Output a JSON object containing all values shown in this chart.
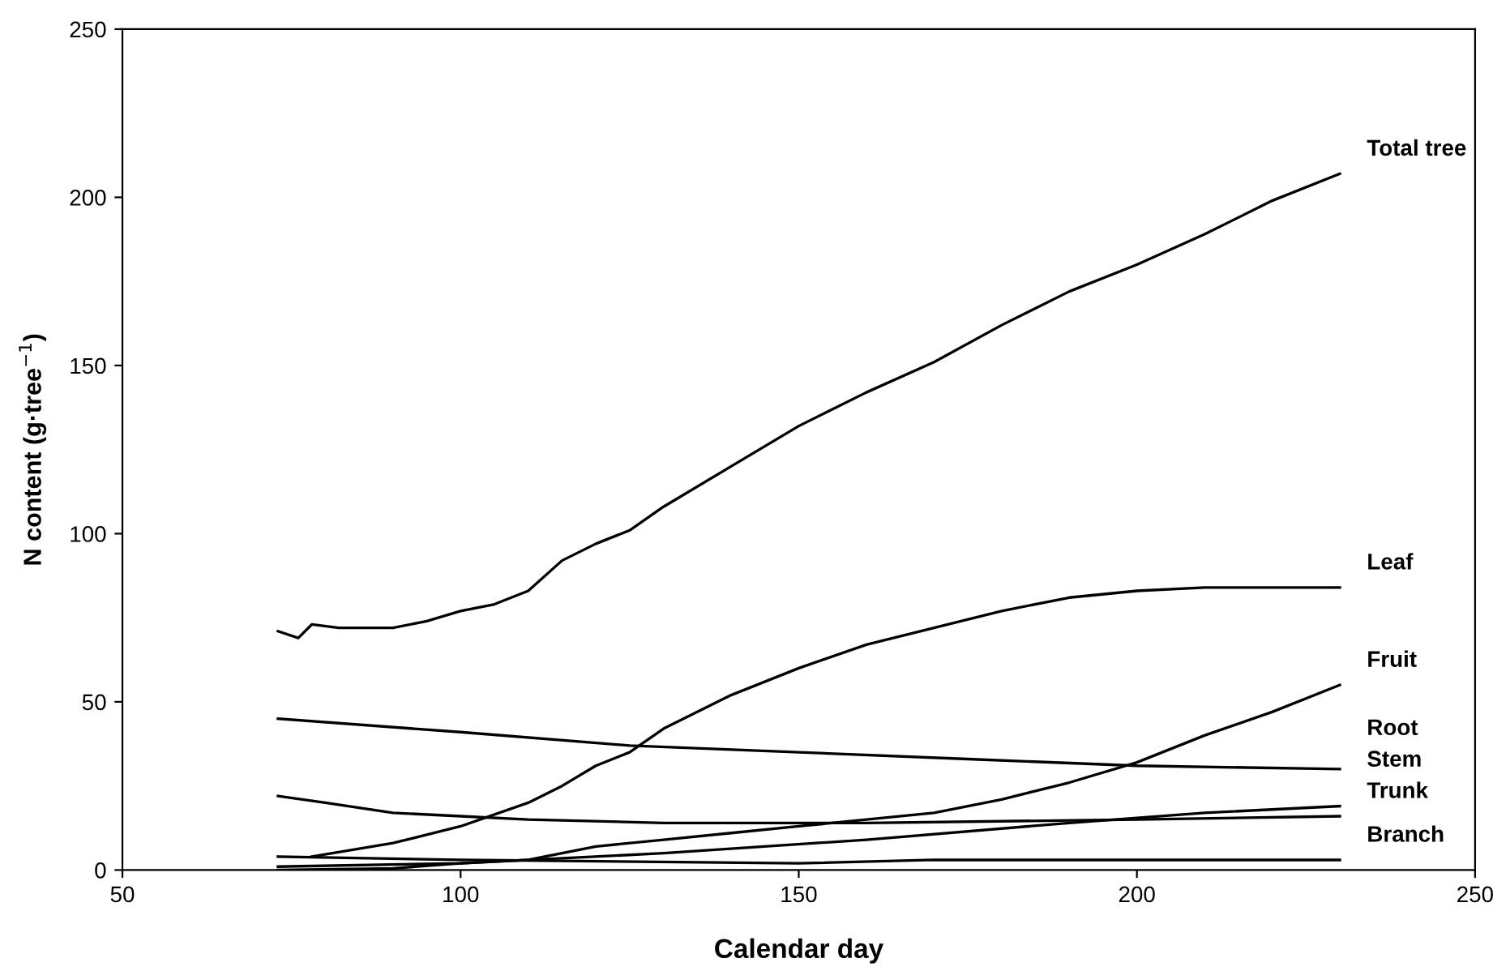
{
  "chart_data": {
    "type": "line",
    "xlabel": "Calendar day",
    "ylabel": "N content (g·tree$^{−1}$)",
    "xlim": [
      50,
      250
    ],
    "ylim": [
      0,
      250
    ],
    "xticks": [
      50,
      100,
      150,
      200,
      250
    ],
    "yticks": [
      0,
      50,
      100,
      150,
      200,
      250
    ],
    "grid": false,
    "legend": false,
    "marker": "none",
    "line_style": "solid",
    "series": [
      {
        "name": "Total tree",
        "color": "#000000",
        "x": [
          73,
          76,
          78,
          82,
          90,
          95,
          100,
          105,
          110,
          115,
          120,
          125,
          130,
          140,
          150,
          160,
          170,
          180,
          190,
          200,
          210,
          220,
          230
        ],
        "values": [
          71,
          69,
          73,
          72,
          72,
          74,
          77,
          79,
          83,
          92,
          97,
          101,
          108,
          120,
          132,
          142,
          151,
          162,
          172,
          180,
          189,
          199,
          207
        ]
      },
      {
        "name": "Leaf",
        "color": "#000000",
        "x": [
          78,
          90,
          100,
          110,
          115,
          120,
          125,
          130,
          140,
          150,
          160,
          170,
          180,
          190,
          200,
          210,
          230
        ],
        "values": [
          4,
          8,
          13,
          20,
          25,
          31,
          35,
          42,
          52,
          60,
          67,
          72,
          77,
          81,
          83,
          84,
          84
        ]
      },
      {
        "name": "Fruit",
        "color": "#000000",
        "x": [
          73,
          90,
          100,
          110,
          120,
          130,
          140,
          150,
          160,
          170,
          180,
          190,
          200,
          210,
          220,
          230
        ],
        "values": [
          0,
          0.5,
          2,
          3,
          7,
          9,
          11,
          13,
          15,
          17,
          21,
          26,
          32,
          40,
          47,
          55
        ]
      },
      {
        "name": "Root",
        "color": "#000000",
        "x": [
          73,
          100,
          125,
          150,
          175,
          200,
          230
        ],
        "values": [
          45,
          41,
          37,
          35,
          33,
          31,
          30
        ]
      },
      {
        "name": "Stem",
        "color": "#000000",
        "x": [
          73,
          100,
          130,
          160,
          190,
          210,
          230
        ],
        "values": [
          1,
          2,
          5,
          9,
          14,
          17,
          19
        ]
      },
      {
        "name": "Trunk",
        "color": "#000000",
        "x": [
          73,
          80,
          90,
          100,
          110,
          130,
          160,
          200,
          230
        ],
        "values": [
          22,
          20,
          17,
          16,
          15,
          14,
          14,
          15,
          16
        ]
      },
      {
        "name": "Branch",
        "color": "#000000",
        "x": [
          73,
          100,
          150,
          170,
          200,
          230
        ],
        "values": [
          4,
          3,
          2,
          3,
          3,
          3
        ]
      }
    ]
  }
}
